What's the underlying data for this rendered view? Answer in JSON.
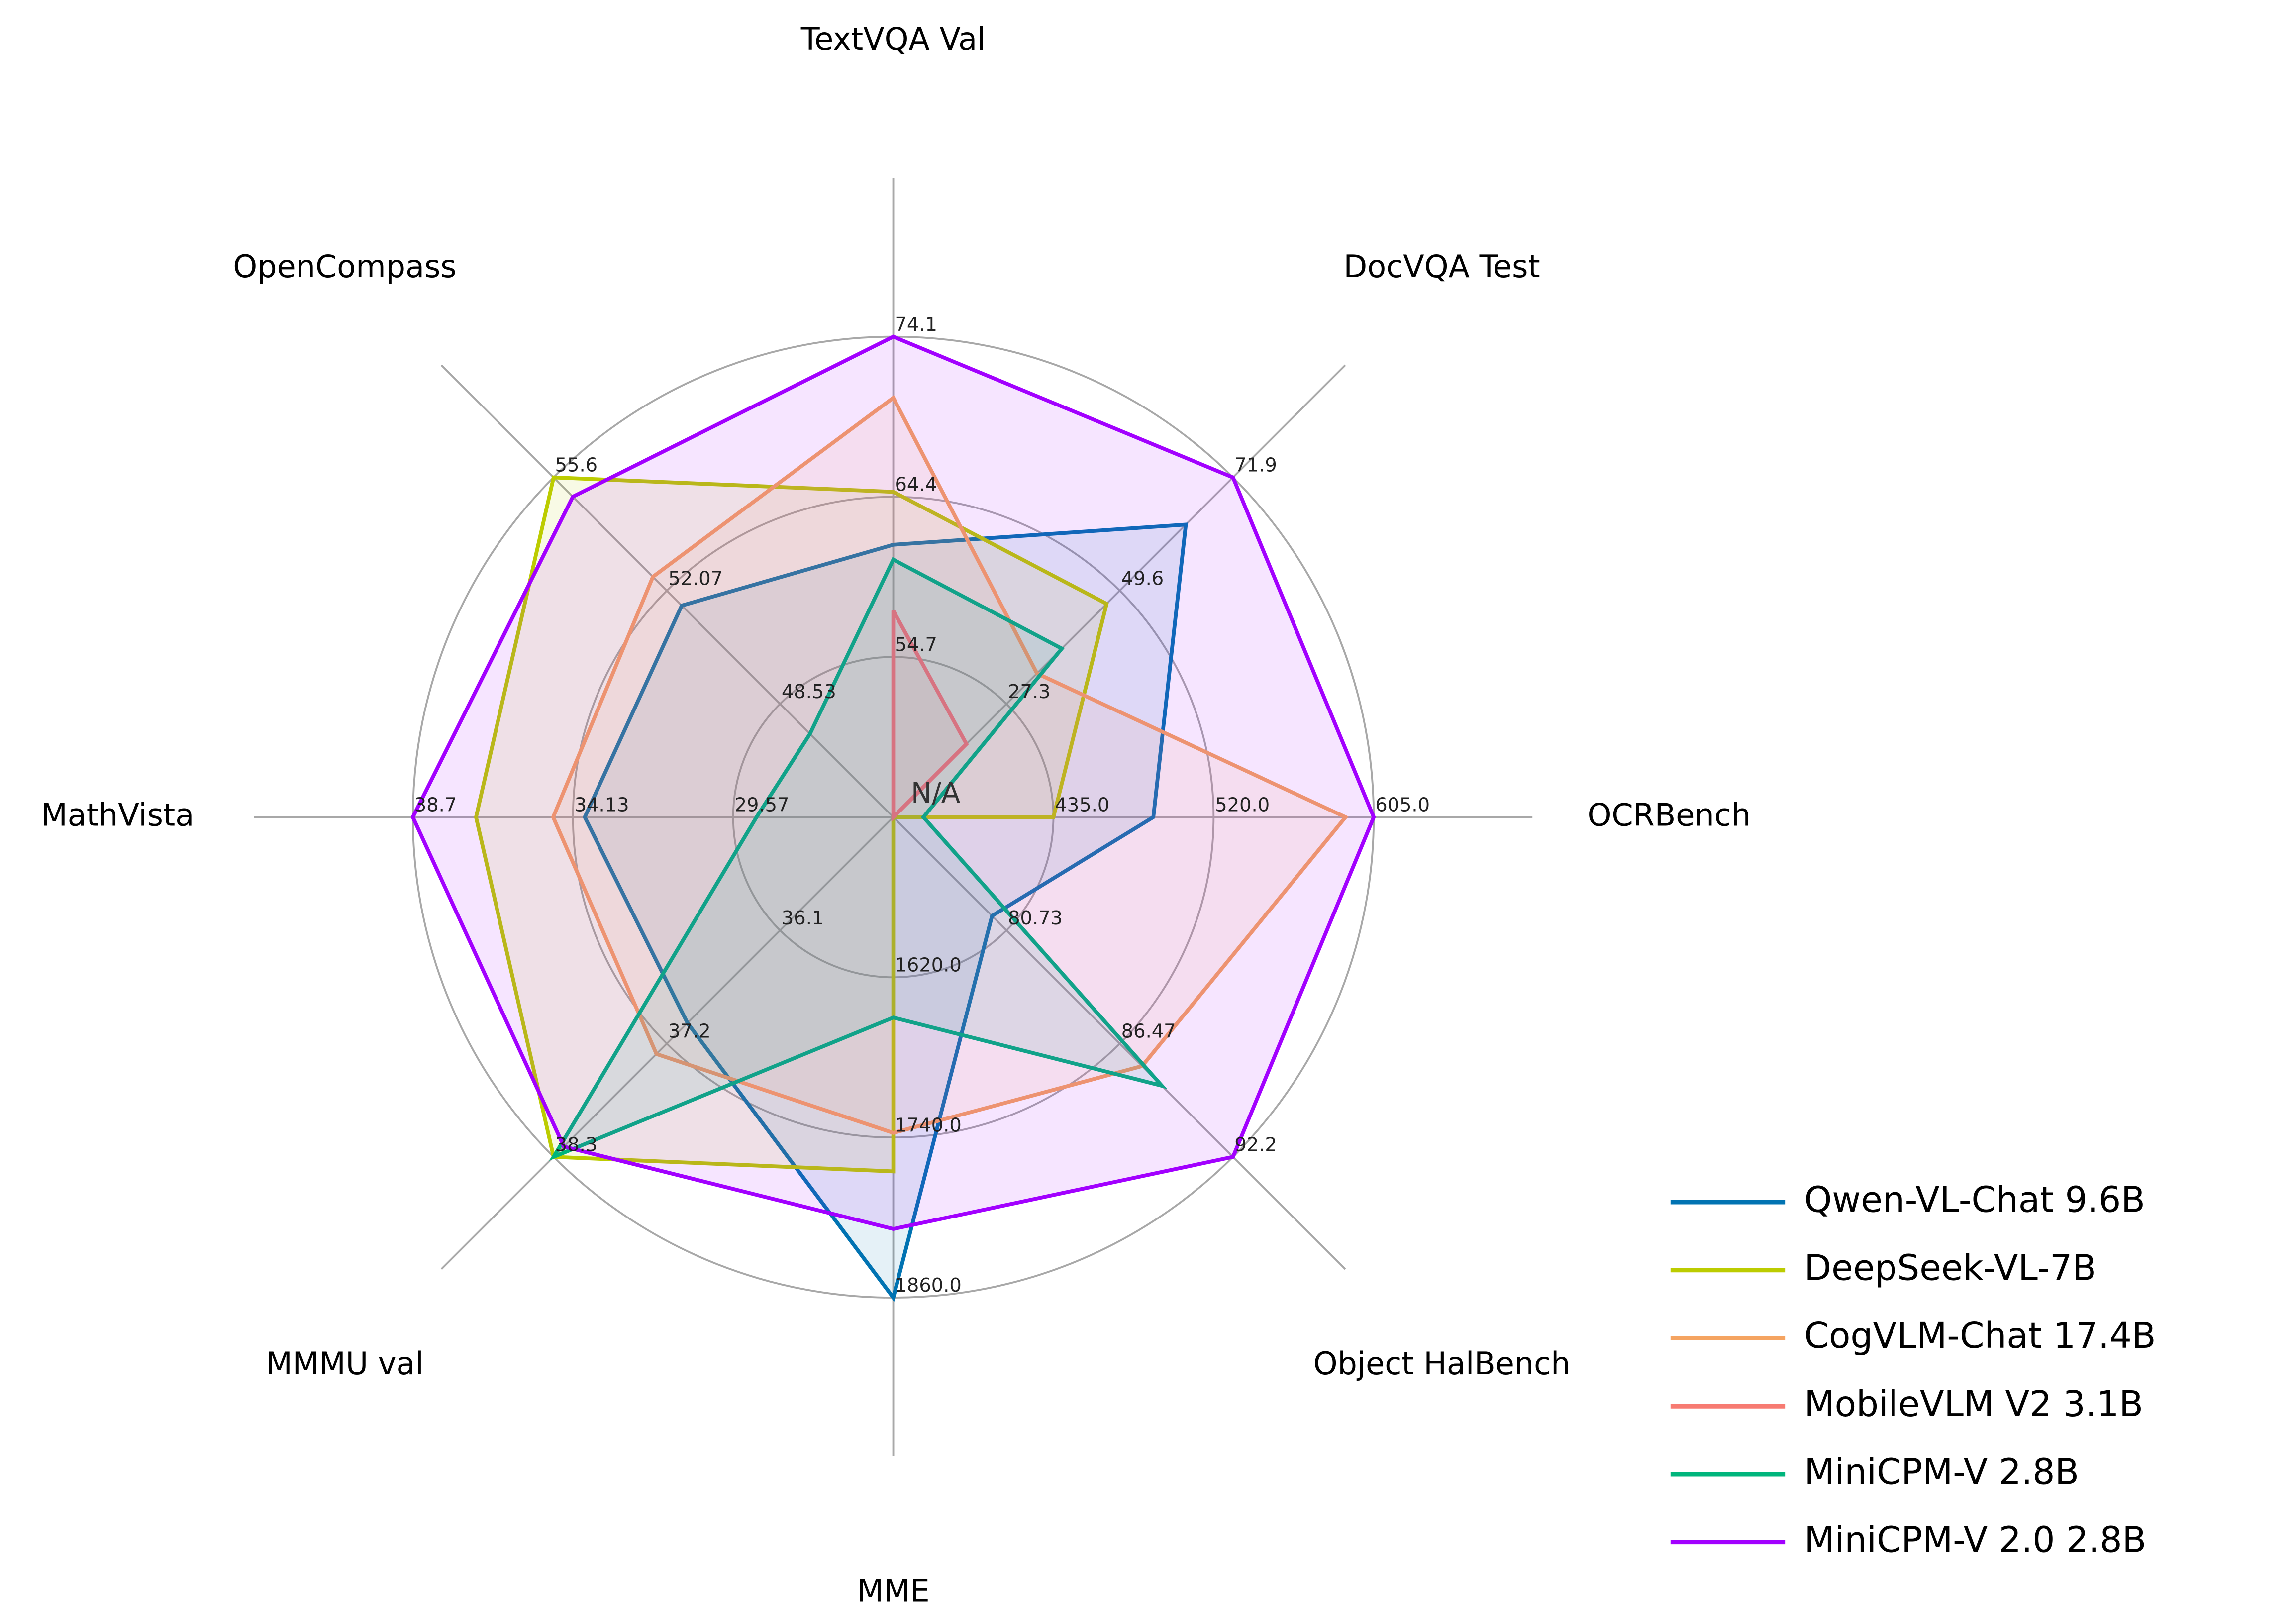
{
  "chart_data": {
    "type": "radar",
    "center_label": "N/A",
    "axes": [
      {
        "name": "TextVQA Val",
        "ticks": [
          "54.7",
          "64.4",
          "74.1"
        ],
        "range": [
          45.0,
          74.1
        ]
      },
      {
        "name": "DocVQA Test",
        "ticks": [
          "27.3",
          "49.6",
          "71.9"
        ],
        "range": [
          5.0,
          71.9
        ]
      },
      {
        "name": "OCRBench",
        "ticks": [
          "435.0",
          "520.0",
          "605.0"
        ],
        "range": [
          350.0,
          605.0
        ]
      },
      {
        "name": "Object HalBench",
        "ticks": [
          "80.73",
          "86.47",
          "92.2"
        ],
        "range": [
          75.0,
          92.2
        ]
      },
      {
        "name": "MME",
        "ticks": [
          "1620.0",
          "1740.0",
          "1860.0"
        ],
        "range": [
          1500.0,
          1860.0
        ]
      },
      {
        "name": "MMMU val",
        "ticks": [
          "36.1",
          "37.2",
          "38.3"
        ],
        "range": [
          35.0,
          38.3
        ]
      },
      {
        "name": "MathVista",
        "ticks": [
          "29.57",
          "34.13",
          "38.7"
        ],
        "range": [
          25.0,
          38.7
        ]
      },
      {
        "name": "OpenCompass",
        "ticks": [
          "48.53",
          "52.07",
          "55.6"
        ],
        "range": [
          45.0,
          55.6
        ]
      }
    ],
    "series": [
      {
        "name": "Qwen-VL-Chat 9.6B",
        "color": "#0173b2",
        "values": [
          61.5,
          62.6,
          488,
          80.0,
          1860.0,
          37.0,
          33.8,
          51.6
        ]
      },
      {
        "name": "DeepSeek-VL-7B",
        "color": "#bccc00",
        "values": [
          64.7,
          47.0,
          435,
          null,
          1765.4,
          38.3,
          36.9,
          55.6
        ]
      },
      {
        "name": "CogVLM-Chat 17.4B",
        "color": "#f5a461",
        "values": [
          70.4,
          33.3,
          590,
          87.6,
          1736.6,
          37.3,
          34.7,
          52.5
        ]
      },
      {
        "name": "MobileVLM V2 3.1B",
        "color": "#f77b72",
        "values": [
          57.5,
          19.4,
          null,
          null,
          null,
          null,
          null,
          null
        ]
      },
      {
        "name": "MiniCPM-V 2.8B",
        "color": "#00b57c",
        "values": [
          60.6,
          38.2,
          366,
          88.6,
          1650.2,
          38.3,
          28.9,
          47.6
        ]
      },
      {
        "name": "MiniCPM-V 2.0 2.8B",
        "color": "#a200ff",
        "values": [
          74.1,
          71.9,
          605,
          92.2,
          1808.6,
          38.2,
          38.7,
          55.0
        ]
      }
    ],
    "rings": 3,
    "grid": true,
    "legend": "bottom-right"
  }
}
